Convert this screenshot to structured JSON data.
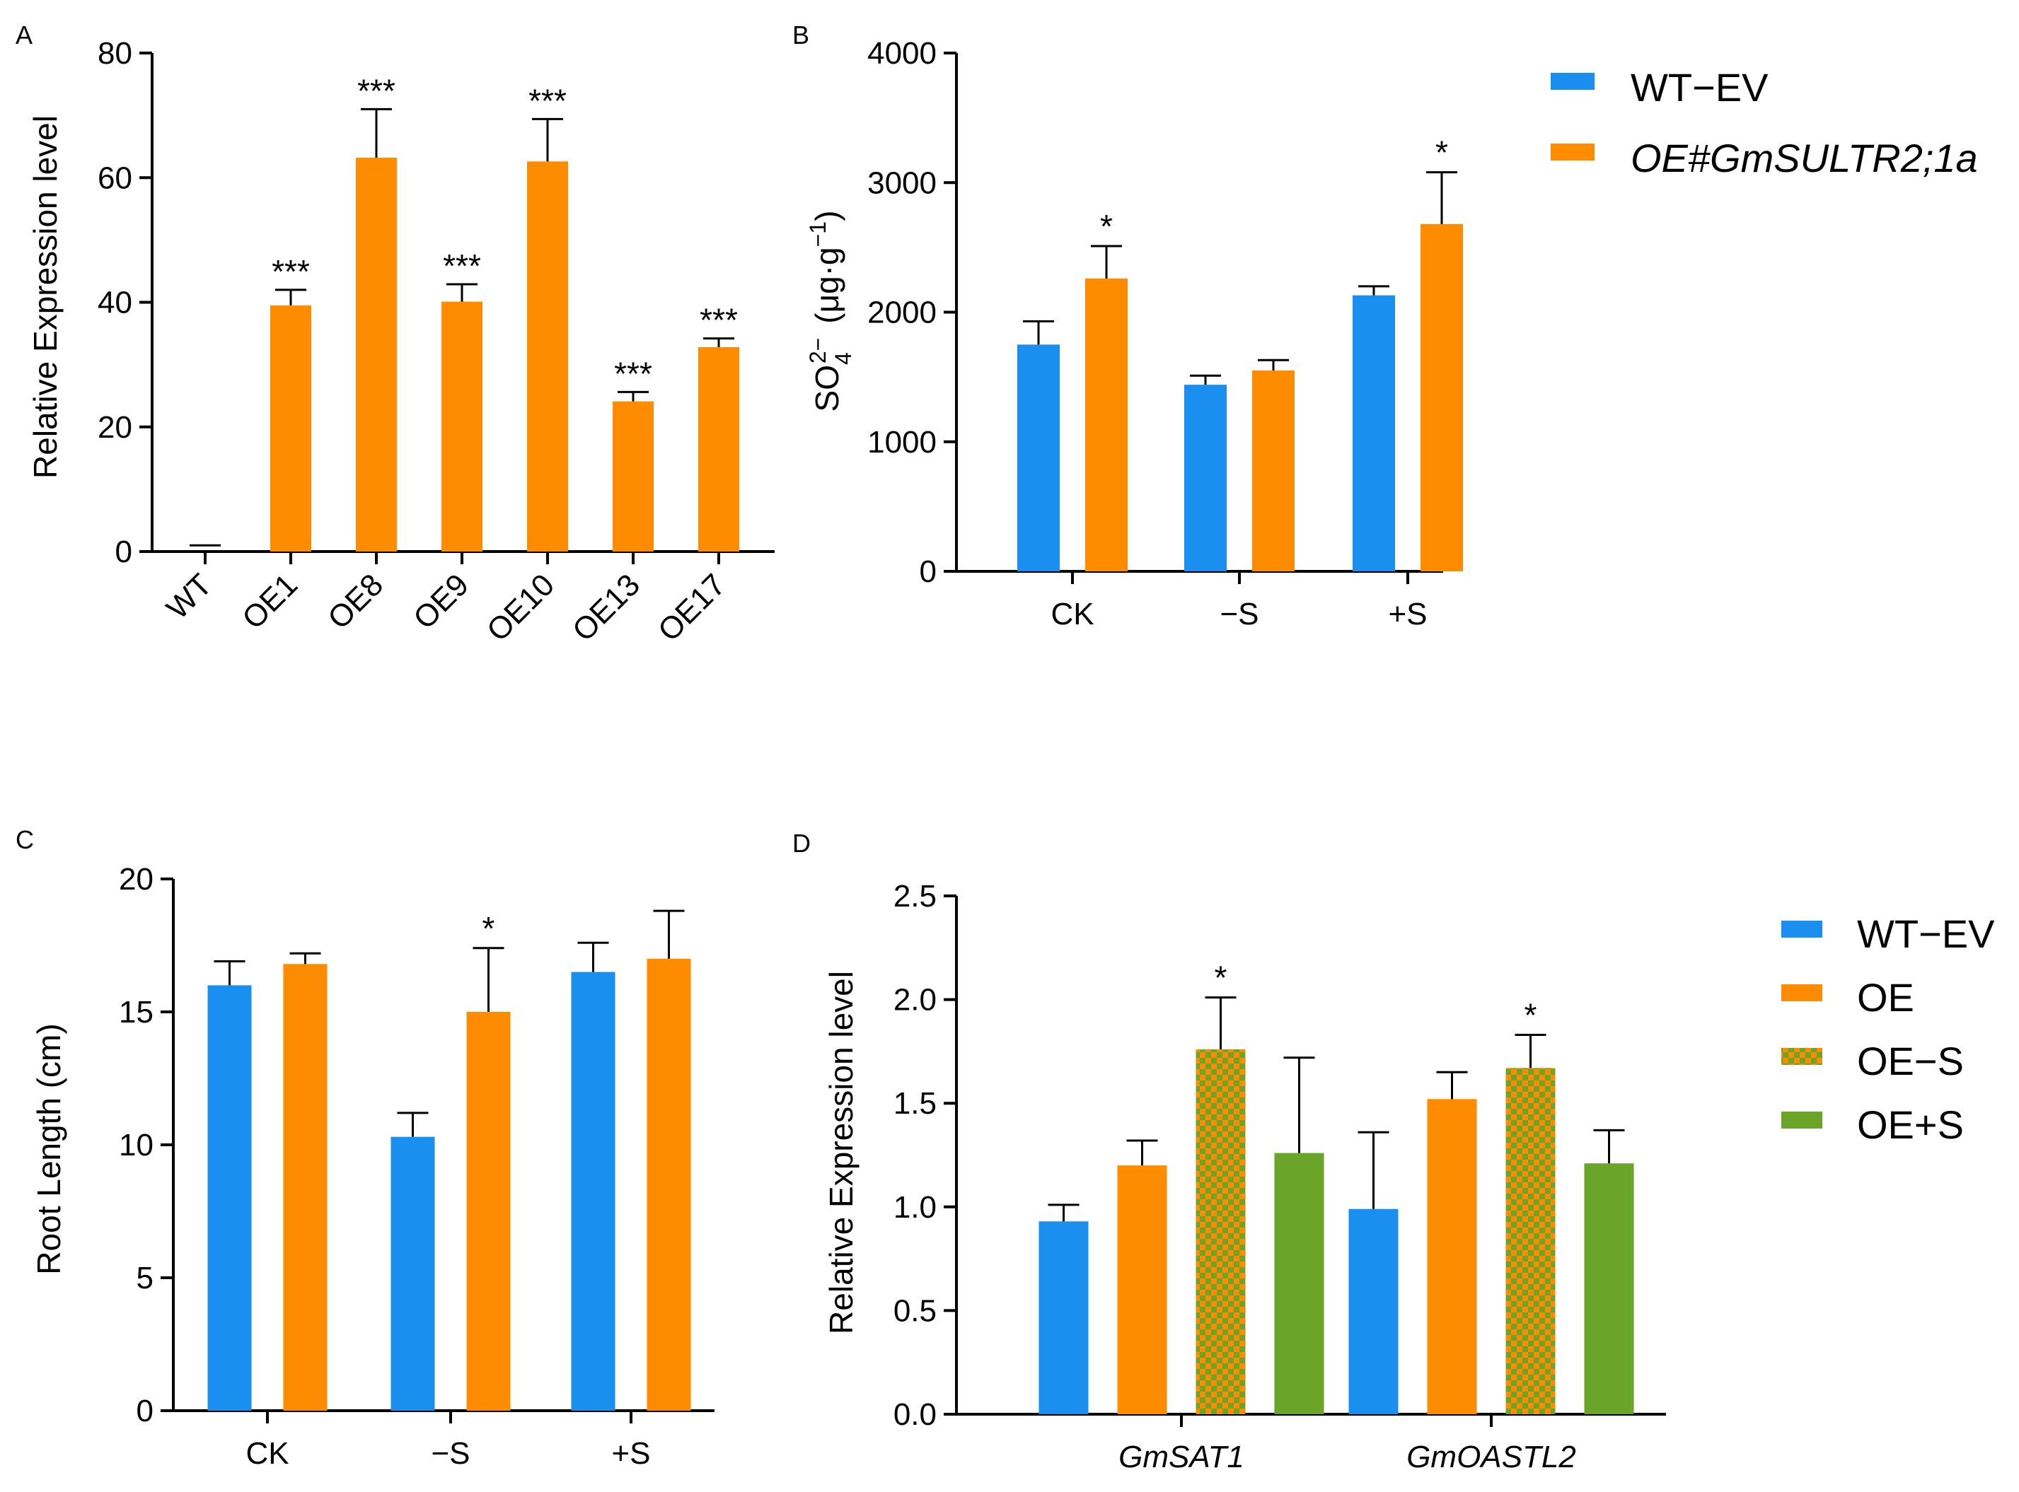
{
  "colors": {
    "blue": "#1B8FF0",
    "orange": "#FF8C00",
    "green": "#6AA52A",
    "axis": "#000000"
  },
  "chart_data": [
    {
      "id": "A",
      "panel_label": "A",
      "type": "bar",
      "ylabel": "Relative Expression level",
      "xlabel": "",
      "ylim": [
        0,
        80
      ],
      "yticks": [
        0,
        20,
        40,
        60,
        80
      ],
      "categories": [
        "WT",
        "OE1",
        "OE8",
        "OE9",
        "OE10",
        "OE13",
        "OE17"
      ],
      "series": [
        {
          "name": "Relative Expression",
          "color_key": "orange",
          "values": [
            1,
            39.5,
            63.2,
            40.1,
            62.6,
            24.1,
            32.8
          ],
          "errors": [
            0.4,
            2.5,
            7.8,
            2.8,
            6.8,
            1.5,
            1.4
          ],
          "colors": [
            "blue",
            "orange",
            "orange",
            "orange",
            "orange",
            "orange",
            "orange"
          ],
          "significance": [
            "",
            "***",
            "***",
            "***",
            "***",
            "***",
            "***"
          ]
        }
      ],
      "xtick_rotation": -45
    },
    {
      "id": "B",
      "panel_label": "B",
      "type": "bar",
      "ylabel_main": "SO",
      "ylabel_sub": "4",
      "ylabel_sup": "2−",
      "ylabel_unit": "(μg·g",
      "ylabel_unit_sup": "−1",
      "ylabel_unit_close": ")",
      "ylim": [
        0,
        4000
      ],
      "yticks": [
        0,
        1000,
        2000,
        3000,
        4000
      ],
      "categories": [
        "CK",
        "−S",
        "+S"
      ],
      "series": [
        {
          "name": "WT−EV",
          "color_key": "blue",
          "values": [
            1750,
            1440,
            2130
          ],
          "errors": [
            180,
            70,
            70
          ],
          "significance": [
            "",
            "",
            ""
          ]
        },
        {
          "name": "OE#GmSULTR2;1a",
          "color_key": "orange",
          "values": [
            2260,
            1550,
            2680
          ],
          "errors": [
            250,
            80,
            400
          ],
          "significance": [
            "*",
            "",
            "*"
          ]
        }
      ],
      "legend": [
        {
          "label": "WT−EV",
          "color_key": "blue",
          "italic": false
        },
        {
          "label": "OE#GmSULTR2;1a",
          "color_key": "orange",
          "italic": true
        }
      ]
    },
    {
      "id": "C",
      "panel_label": "C",
      "type": "bar",
      "ylabel": "Root Length (cm)",
      "ylim": [
        0,
        20
      ],
      "yticks": [
        0,
        5,
        10,
        15,
        20
      ],
      "categories": [
        "CK",
        "−S",
        "+S"
      ],
      "series": [
        {
          "name": "WT−EV",
          "color_key": "blue",
          "values": [
            16.0,
            10.3,
            16.5
          ],
          "errors": [
            0.9,
            0.9,
            1.1
          ],
          "significance": [
            "",
            "",
            ""
          ]
        },
        {
          "name": "OE",
          "color_key": "orange",
          "values": [
            16.8,
            15.0,
            17.0
          ],
          "errors": [
            0.4,
            2.4,
            1.8
          ],
          "significance": [
            "",
            "*",
            ""
          ]
        }
      ]
    },
    {
      "id": "D",
      "panel_label": "D",
      "type": "bar",
      "ylabel": "Relative Expression level",
      "ylim": [
        0,
        2.5
      ],
      "yticks": [
        "0.0",
        "0.5",
        "1.0",
        "1.5",
        "2.0",
        "2.5"
      ],
      "categories": [
        "GmSAT1",
        "GmOASTL2"
      ],
      "categories_italic": true,
      "series": [
        {
          "name": "WT−EV",
          "color_key": "blue",
          "pattern": false,
          "values": [
            0.93,
            0.99
          ],
          "errors": [
            0.08,
            0.37
          ],
          "significance": [
            "",
            ""
          ]
        },
        {
          "name": "OE",
          "color_key": "orange",
          "pattern": false,
          "values": [
            1.2,
            1.52
          ],
          "errors": [
            0.12,
            0.13
          ],
          "significance": [
            "",
            ""
          ]
        },
        {
          "name": "OE−S",
          "color_key": "orange",
          "pattern": true,
          "values": [
            1.76,
            1.67
          ],
          "errors": [
            0.25,
            0.16
          ],
          "significance": [
            "*",
            "*"
          ]
        },
        {
          "name": "OE+S",
          "color_key": "green",
          "pattern": false,
          "values": [
            1.26,
            1.21
          ],
          "errors": [
            0.46,
            0.16
          ],
          "significance": [
            "",
            ""
          ]
        }
      ],
      "legend": [
        {
          "label": "WT−EV",
          "color_key": "blue",
          "pattern": false
        },
        {
          "label": "OE",
          "color_key": "orange",
          "pattern": false
        },
        {
          "label": "OE−S",
          "color_key": "orange",
          "pattern": true
        },
        {
          "label": "OE+S",
          "color_key": "green",
          "pattern": false
        }
      ]
    }
  ]
}
